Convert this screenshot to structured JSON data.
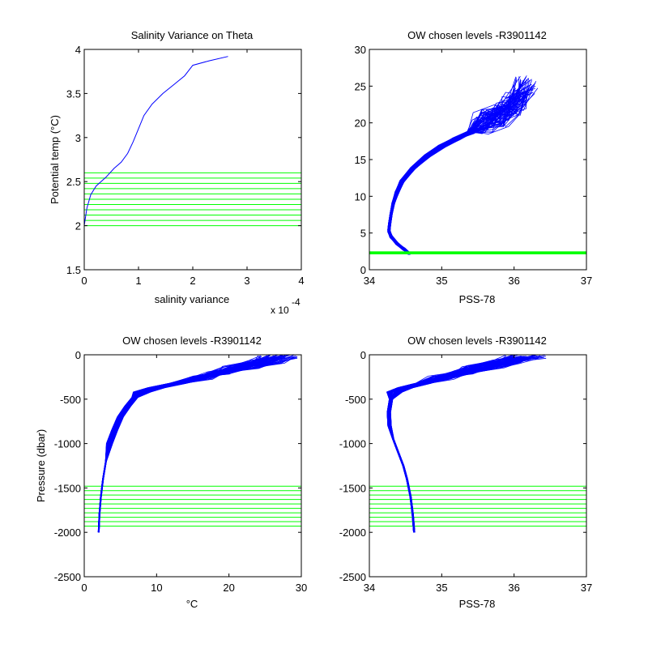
{
  "figure": {
    "background": "#ffffff",
    "line_color": "#0000ff",
    "level_color": "#00ff00"
  },
  "chart_data": [
    {
      "type": "line",
      "title": "Salinity Variance on Theta",
      "xlabel": "salinity variance",
      "ylabel": "Potential temp (°C)",
      "x_exponent_label": "x 10",
      "x_exponent_power": "-4",
      "xlim": [
        0,
        4
      ],
      "ylim": [
        1.5,
        4
      ],
      "xticks": [
        "0",
        "1",
        "2",
        "3",
        "4"
      ],
      "yticks": [
        "1.5",
        "2",
        "2.5",
        "3",
        "3.5",
        "4"
      ],
      "grid": false,
      "series": [
        {
          "x": [
            0,
            0.05,
            0.12,
            0.22,
            0.4,
            0.55,
            0.68,
            0.8,
            0.9,
            1.0,
            1.1,
            1.25,
            1.45,
            1.65,
            1.85,
            2.0,
            2.3,
            2.65
          ],
          "y": [
            2.0,
            2.2,
            2.35,
            2.45,
            2.55,
            2.65,
            2.72,
            2.82,
            2.95,
            3.1,
            3.25,
            3.38,
            3.5,
            3.6,
            3.7,
            3.82,
            3.87,
            3.92
          ]
        }
      ],
      "hlines": [
        2.0,
        2.06,
        2.12,
        2.18,
        2.24,
        2.3,
        2.36,
        2.42,
        2.48,
        2.54,
        2.6
      ]
    },
    {
      "type": "line",
      "title": "OW chosen levels -R3901142",
      "xlabel": "PSS-78",
      "ylabel": "",
      "xlim": [
        34,
        37
      ],
      "ylim": [
        0,
        30
      ],
      "xticks": [
        "34",
        "35",
        "36",
        "37"
      ],
      "yticks": [
        "0",
        "5",
        "10",
        "15",
        "20",
        "25",
        "30"
      ],
      "grid": false,
      "profile": {
        "x": [
          34.55,
          34.48,
          34.38,
          34.3,
          34.27,
          34.28,
          34.3,
          34.33,
          34.38,
          34.45,
          34.6,
          34.8,
          35.0,
          35.2,
          35.4,
          35.6,
          35.8,
          36.0,
          36.15
        ],
        "y": [
          2.2,
          2.8,
          3.6,
          4.5,
          5.3,
          6.2,
          7.5,
          9.0,
          10.5,
          12.0,
          13.8,
          15.5,
          16.8,
          17.8,
          18.7,
          19.5,
          20.5,
          22.0,
          24.0
        ]
      },
      "band": [
        2.1,
        2.5
      ]
    },
    {
      "type": "line",
      "title": "OW chosen levels -R3901142",
      "xlabel": "°C",
      "ylabel": "Pressure (dbar)",
      "xlim": [
        0,
        30
      ],
      "ylim": [
        -2500,
        0
      ],
      "xticks": [
        "0",
        "10",
        "20",
        "30"
      ],
      "yticks": [
        "-2500",
        "-2000",
        "-1500",
        "-1000",
        "-500",
        "0"
      ],
      "grid": false,
      "profile": {
        "x": [
          2.0,
          2.1,
          2.3,
          2.6,
          3.0,
          3.5,
          4.2,
          5.0,
          6.0,
          7.0,
          8.0,
          10.0,
          13.0,
          16.0,
          19.0,
          22.0,
          25.0,
          27.0
        ],
        "y": [
          -2000,
          -1800,
          -1600,
          -1400,
          -1200,
          -1000,
          -850,
          -700,
          -580,
          -480,
          -420,
          -370,
          -320,
          -260,
          -200,
          -140,
          -80,
          -20
        ]
      },
      "hlines": [
        -1480,
        -1530,
        -1580,
        -1630,
        -1680,
        -1730,
        -1780,
        -1830,
        -1880,
        -1930
      ]
    },
    {
      "type": "line",
      "title": "OW chosen levels -R3901142",
      "xlabel": "PSS-78",
      "ylabel": "",
      "xlim": [
        34,
        37
      ],
      "ylim": [
        -2500,
        0
      ],
      "xticks": [
        "34",
        "35",
        "36",
        "37"
      ],
      "yticks": [
        "-2500",
        "-2000",
        "-1500",
        "-1000",
        "-500",
        "0"
      ],
      "grid": false,
      "profile": {
        "x": [
          34.62,
          34.6,
          34.57,
          34.52,
          34.47,
          34.4,
          34.33,
          34.28,
          34.27,
          34.3,
          34.35,
          34.5,
          34.75,
          35.0,
          35.3,
          35.6,
          35.9,
          36.15
        ],
        "y": [
          -2000,
          -1800,
          -1600,
          -1400,
          -1250,
          -1100,
          -950,
          -800,
          -650,
          -500,
          -420,
          -370,
          -320,
          -260,
          -200,
          -140,
          -80,
          -20
        ]
      },
      "hlines": [
        -1480,
        -1530,
        -1580,
        -1630,
        -1680,
        -1730,
        -1780,
        -1830,
        -1880,
        -1930
      ]
    }
  ]
}
